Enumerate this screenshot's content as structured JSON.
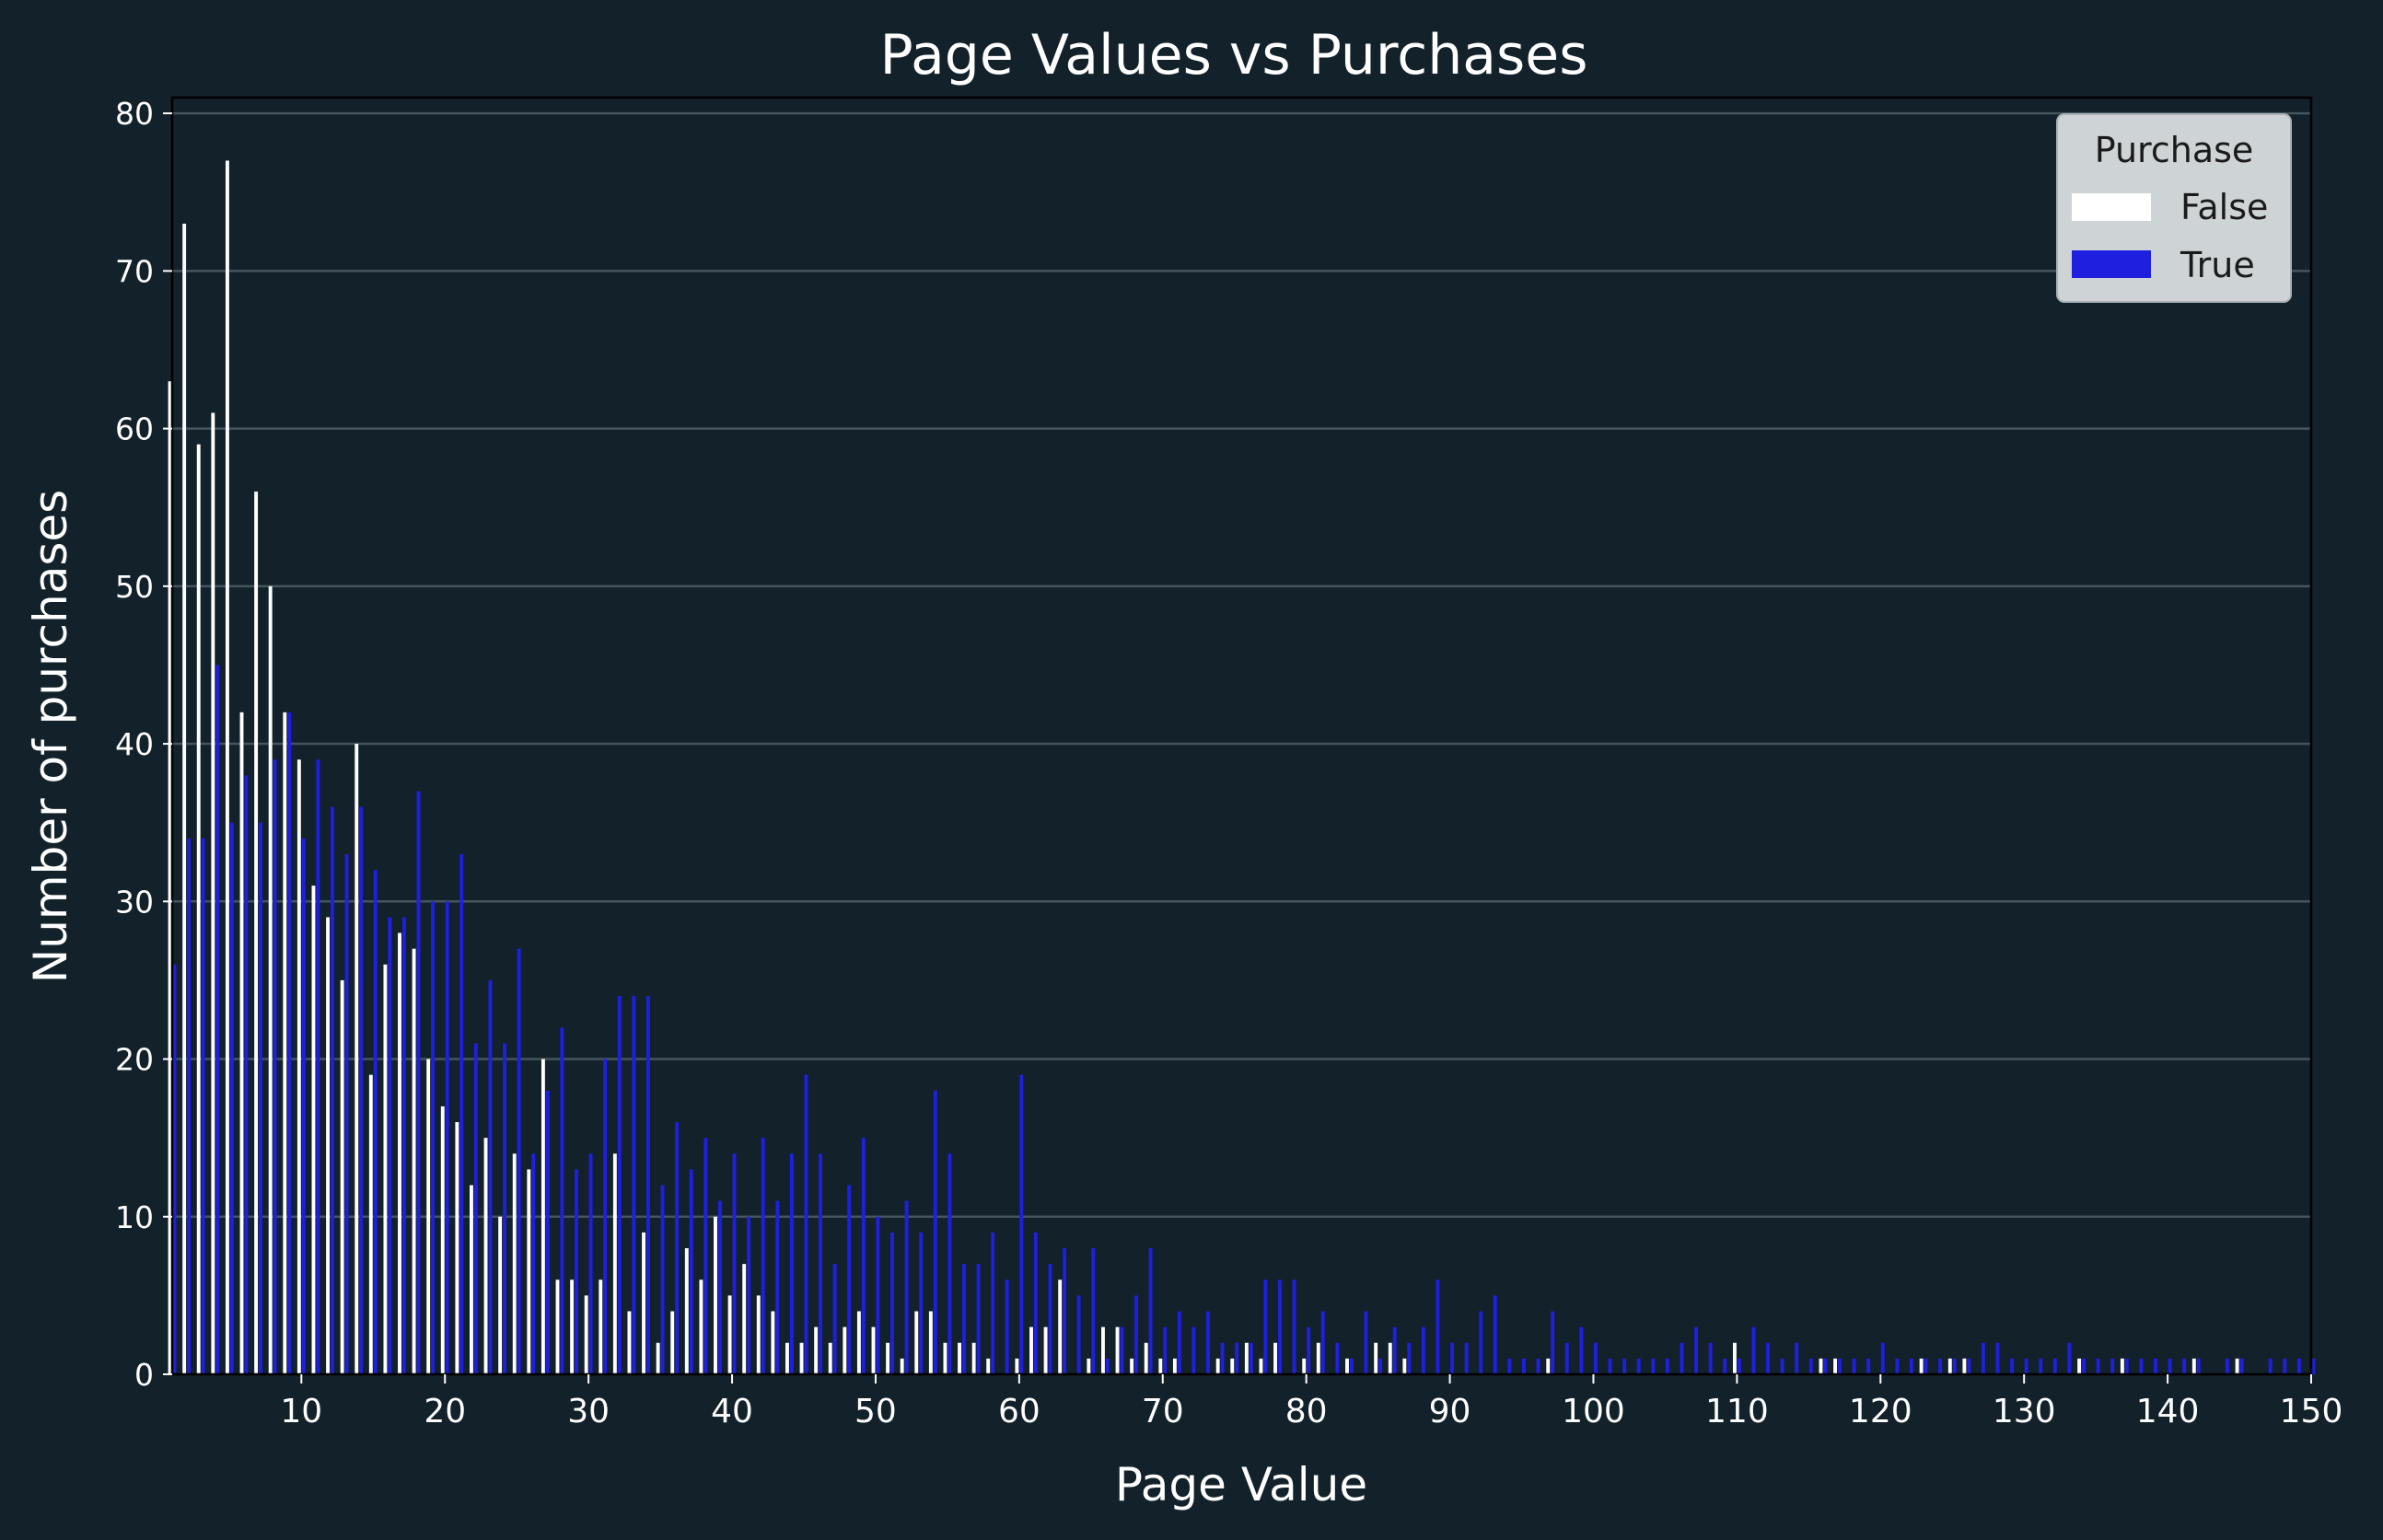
{
  "chart_data": {
    "type": "bar",
    "title": "Page Values vs Purchases",
    "xlabel": "Page Value",
    "ylabel": "Number of purchases",
    "xlim": [
      1,
      150
    ],
    "ylim": [
      0,
      81
    ],
    "x_ticks": [
      10,
      20,
      30,
      40,
      50,
      60,
      70,
      80,
      90,
      100,
      110,
      120,
      130,
      140,
      150
    ],
    "y_ticks": [
      0,
      10,
      20,
      30,
      40,
      50,
      60,
      70,
      80
    ],
    "grid": "horizontal",
    "legend": {
      "title": "Purchase",
      "placement": "top-right"
    },
    "x": [
      1,
      2,
      3,
      4,
      5,
      6,
      7,
      8,
      9,
      10,
      11,
      12,
      13,
      14,
      15,
      16,
      17,
      18,
      19,
      20,
      21,
      22,
      23,
      24,
      25,
      26,
      27,
      28,
      29,
      30,
      31,
      32,
      33,
      34,
      35,
      36,
      37,
      38,
      39,
      40,
      41,
      42,
      43,
      44,
      45,
      46,
      47,
      48,
      49,
      50,
      51,
      52,
      53,
      54,
      55,
      56,
      57,
      58,
      59,
      60,
      61,
      62,
      63,
      64,
      65,
      66,
      67,
      68,
      69,
      70,
      71,
      72,
      73,
      74,
      75,
      76,
      77,
      78,
      79,
      80,
      81,
      82,
      83,
      84,
      85,
      86,
      87,
      88,
      89,
      90,
      91,
      92,
      93,
      94,
      95,
      96,
      97,
      98,
      99,
      100,
      101,
      102,
      103,
      104,
      105,
      106,
      107,
      108,
      109,
      110,
      111,
      112,
      113,
      114,
      115,
      116,
      117,
      118,
      119,
      120,
      121,
      122,
      123,
      124,
      125,
      126,
      127,
      128,
      129,
      130,
      131,
      132,
      133,
      134,
      135,
      136,
      137,
      138,
      139,
      140,
      141,
      142,
      143,
      144,
      145,
      146,
      147,
      148,
      149,
      150
    ],
    "series": [
      {
        "name": "False",
        "color": "#ffffff",
        "values": [
          63,
          73,
          59,
          61,
          77,
          42,
          56,
          50,
          42,
          39,
          31,
          29,
          25,
          40,
          19,
          26,
          28,
          27,
          20,
          17,
          16,
          12,
          15,
          10,
          14,
          13,
          20,
          6,
          6,
          5,
          6,
          14,
          4,
          9,
          2,
          4,
          8,
          6,
          10,
          5,
          7,
          5,
          4,
          2,
          2,
          3,
          2,
          3,
          4,
          3,
          2,
          1,
          4,
          4,
          2,
          2,
          2,
          1,
          0,
          1,
          3,
          3,
          6,
          0,
          1,
          3,
          3,
          1,
          2,
          1,
          1,
          0,
          0,
          1,
          1,
          2,
          1,
          2,
          0,
          1,
          2,
          0,
          1,
          0,
          2,
          2,
          1,
          0,
          0,
          0,
          0,
          0,
          0,
          0,
          0,
          0,
          1,
          0,
          0,
          0,
          0,
          0,
          0,
          0,
          0,
          0,
          0,
          0,
          0,
          2,
          0,
          0,
          0,
          0,
          0,
          1,
          1,
          0,
          0,
          0,
          0,
          0,
          1,
          0,
          1,
          1,
          0,
          0,
          0,
          0,
          0,
          0,
          0,
          1,
          0,
          0,
          1,
          0,
          0,
          0,
          0,
          1,
          0,
          0,
          1,
          0,
          0,
          0,
          0,
          0
        ]
      },
      {
        "name": "True",
        "color": "#1f1fe0",
        "values": [
          26,
          34,
          34,
          45,
          35,
          38,
          35,
          39,
          42,
          34,
          39,
          36,
          33,
          36,
          32,
          29,
          29,
          37,
          30,
          30,
          33,
          21,
          25,
          21,
          27,
          14,
          18,
          22,
          13,
          14,
          20,
          24,
          24,
          24,
          12,
          16,
          13,
          15,
          11,
          14,
          10,
          15,
          11,
          14,
          19,
          14,
          7,
          12,
          15,
          10,
          9,
          11,
          9,
          18,
          14,
          7,
          7,
          9,
          6,
          19,
          9,
          7,
          8,
          5,
          8,
          1,
          3,
          5,
          8,
          3,
          4,
          3,
          4,
          2,
          2,
          2,
          6,
          6,
          6,
          3,
          4,
          2,
          1,
          4,
          1,
          3,
          2,
          3,
          6,
          2,
          2,
          4,
          5,
          1,
          1,
          1,
          4,
          2,
          3,
          2,
          1,
          1,
          1,
          1,
          1,
          2,
          3,
          2,
          1,
          1,
          3,
          2,
          1,
          2,
          1,
          1,
          1,
          1,
          1,
          2,
          1,
          1,
          1,
          1,
          1,
          1,
          2,
          2,
          1,
          1,
          1,
          1,
          2,
          1,
          1,
          1,
          1,
          1,
          1,
          1,
          1,
          1,
          0,
          1,
          1,
          0,
          1,
          1,
          1,
          1
        ]
      }
    ]
  }
}
